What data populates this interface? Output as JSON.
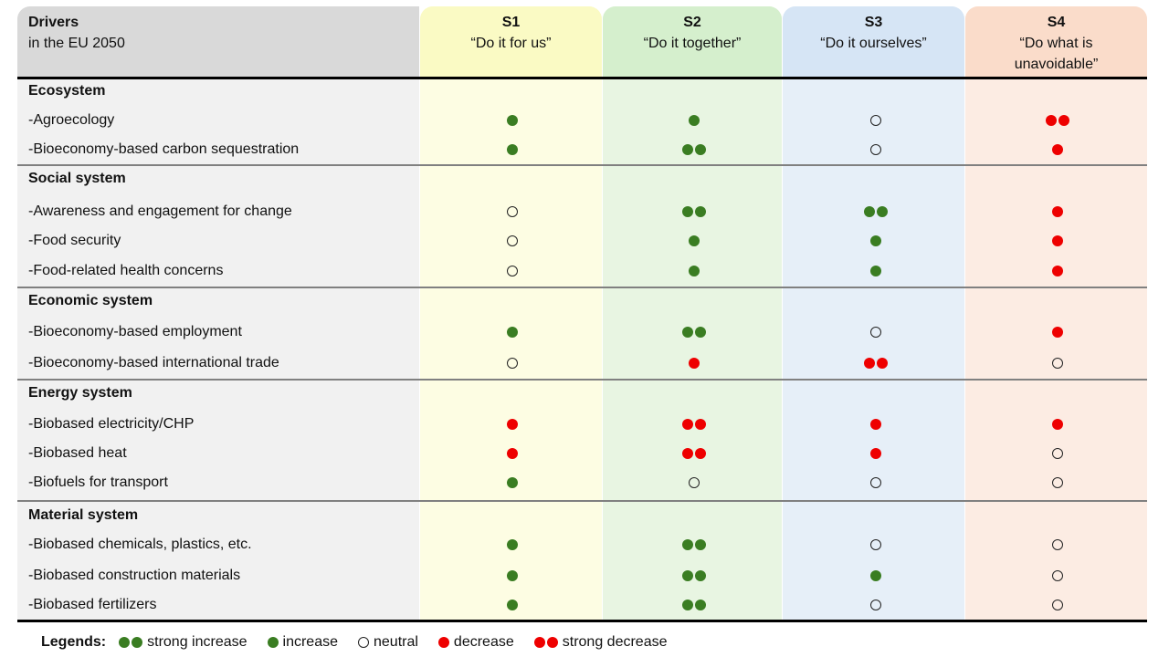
{
  "header": {
    "title_bold": "Drivers",
    "title_sub": "in the EU 2050",
    "scenarios": [
      {
        "id": "S1",
        "name": "“Do it for us”"
      },
      {
        "id": "S2",
        "name": "“Do it together”"
      },
      {
        "id": "S3",
        "name": "“Do it ourselves”"
      },
      {
        "id": "S4",
        "name": "“Do what is unavoidable”"
      }
    ]
  },
  "colors": {
    "increase": "#3a7d22",
    "decrease": "#ee0000",
    "s1": "#fdfde3",
    "s2": "#e8f5e2",
    "s3": "#e6eff8",
    "s4": "#fcece3"
  },
  "categories": [
    {
      "name": "Ecosystem",
      "items": [
        {
          "label": "-Agroecology",
          "values": [
            "increase",
            "increase",
            "neutral",
            "strong decrease"
          ]
        },
        {
          "label": "-Bioeconomy-based carbon sequestration",
          "values": [
            "increase",
            "strong increase",
            "neutral",
            "decrease"
          ]
        }
      ]
    },
    {
      "name": "Social system",
      "items": [
        {
          "label": "-Awareness and engagement for change",
          "values": [
            "neutral",
            "strong increase",
            "strong increase",
            "decrease"
          ]
        },
        {
          "label": "-Food security",
          "values": [
            "neutral",
            "increase",
            "increase",
            "decrease"
          ]
        },
        {
          "label": "-Food-related health concerns",
          "values": [
            "neutral",
            "increase",
            "increase",
            "decrease"
          ]
        }
      ]
    },
    {
      "name": "Economic system",
      "items": [
        {
          "label": "-Bioeconomy-based employment",
          "values": [
            "increase",
            "strong increase",
            "neutral",
            "decrease"
          ]
        },
        {
          "label": "-Bioeconomy-based international trade",
          "values": [
            "neutral",
            "decrease",
            "strong decrease",
            "neutral"
          ]
        }
      ]
    },
    {
      "name": "Energy system",
      "items": [
        {
          "label": "-Biobased electricity/CHP",
          "values": [
            "decrease",
            "strong decrease",
            "decrease",
            "decrease"
          ]
        },
        {
          "label": "-Biobased heat",
          "values": [
            "decrease",
            "strong decrease",
            "decrease",
            "neutral"
          ]
        },
        {
          "label": "-Biofuels for transport",
          "values": [
            "increase",
            "neutral",
            "neutral",
            "neutral"
          ]
        }
      ]
    },
    {
      "name": "Material system",
      "items": [
        {
          "label": "-Biobased chemicals, plastics, etc.",
          "values": [
            "increase",
            "strong increase",
            "neutral",
            "neutral"
          ]
        },
        {
          "label": "-Biobased construction materials",
          "values": [
            "increase",
            "strong increase",
            "increase",
            "neutral"
          ]
        },
        {
          "label": "-Biobased fertilizers",
          "values": [
            "increase",
            "strong increase",
            "neutral",
            "neutral"
          ]
        }
      ]
    }
  ],
  "legend": {
    "label": "Legends:",
    "entries": [
      {
        "key": "strong increase",
        "text": "strong increase"
      },
      {
        "key": "increase",
        "text": "increase"
      },
      {
        "key": "neutral",
        "text": "neutral"
      },
      {
        "key": "decrease",
        "text": "decrease"
      },
      {
        "key": "strong decrease",
        "text": "strong decrease"
      }
    ]
  }
}
